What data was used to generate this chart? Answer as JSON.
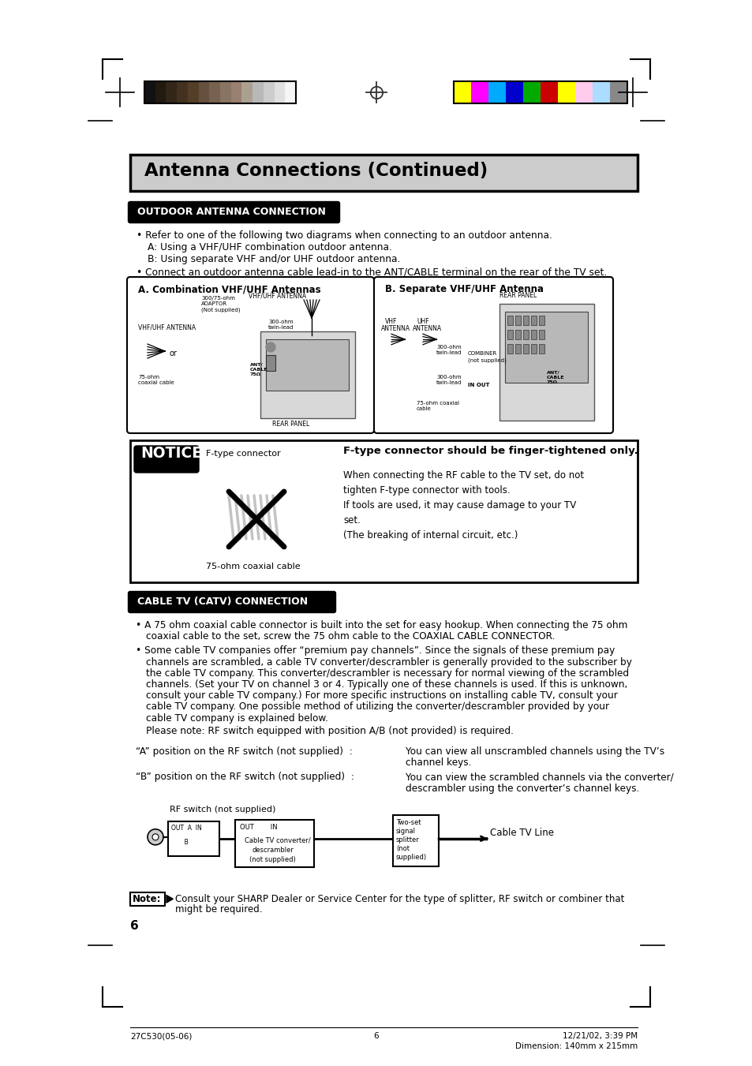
{
  "page_bg": "#ffffff",
  "title": "Antenna Connections (Continued)",
  "section1_label": "OUTDOOR ANTENNA CONNECTION",
  "section2_label": "CABLE TV (CATV) CONNECTION",
  "bullet1_line1": "Refer to one of the following two diagrams when connecting to an outdoor antenna.",
  "bullet1_line2": "A: Using a VHF/UHF combination outdoor antenna.",
  "bullet1_line3": "B: Using separate VHF and/or UHF outdoor antenna.",
  "bullet2": "Connect an outdoor antenna cable lead-in to the ANT/CABLE terminal on the rear of the TV set.",
  "diagram_a_title": "A. Combination VHF/UHF Antennas",
  "diagram_b_title": "B. Separate VHF/UHF Antenna",
  "notice_title": "F-type connector should be finger-tightened only.",
  "notice_para1": "When connecting the RF cable to the TV set, do not",
  "notice_para2": "tighten F-type connector with tools.",
  "notice_para3": "If tools are used, it may cause damage to your TV",
  "notice_para4": "set.",
  "notice_para5": "(The breaking of internal circuit, etc.)",
  "notice_ftype": "F-type connector",
  "notice_coax": "75-ohm coaxial cable",
  "catv_bullet1_1": "A 75 ohm coaxial cable connector is built into the set for easy hookup. When connecting the 75 ohm",
  "catv_bullet1_2": "coaxial cable to the set, screw the 75 ohm cable to the COAXIAL CABLE CONNECTOR.",
  "catv_bullet2_1": "Some cable TV companies offer “premium pay channels”. Since the signals of these premium pay",
  "catv_bullet2_2": "channels are scrambled, a cable TV converter/descrambler is generally provided to the subscriber by",
  "catv_bullet2_3": "the cable TV company. This converter/descrambler is necessary for normal viewing of the scrambled",
  "catv_bullet2_4": "channels. (Set your TV on channel 3 or 4. Typically one of these channels is used. If this is unknown,",
  "catv_bullet2_5": "consult your cable TV company.) For more specific instructions on installing cable TV, consult your",
  "catv_bullet2_6": "cable TV company. One possible method of utilizing the converter/descrambler provided by your",
  "catv_bullet2_7": "cable TV company is explained below.",
  "catv_note1": "Please note: RF switch equipped with position A/B (not provided) is required.",
  "catv_a_pos_label": "“A” position on the RF switch (not supplied)  :",
  "catv_a_pos_val1": "You can view all unscrambled channels using the TV’s",
  "catv_a_pos_val2": "channel keys.",
  "catv_b_pos_label": "“B” position on the RF switch (not supplied)  :",
  "catv_b_pos_val1": "You can view the scrambled channels via the converter/",
  "catv_b_pos_val2": "descrambler using the converter’s channel keys.",
  "rf_switch_label": "RF switch (not supplied)",
  "two_set_label": "Two-set\nsignal\nsplitter\n(not\nsupplied)",
  "cable_tv_line": "Cable TV Line",
  "cable_tv_conv": "Cable TV converter/",
  "cable_tv_desc": "descrambler",
  "cable_tv_not_sup": "(not supplied)",
  "note_text": "Consult your SHARP Dealer or Service Center for the type of splitter, RF switch or combiner that",
  "note_text2": "might be required.",
  "page_number": "6",
  "footer_left": "27C530(05-06)",
  "footer_center": "6",
  "footer_right": "12/21/02, 3:39 PM",
  "footer_dim": "Dimension: 140mm x 215mm",
  "color_bar_left": [
    "#111111",
    "#221a0f",
    "#332618",
    "#443220",
    "#553e28",
    "#665040",
    "#776250",
    "#887460",
    "#998070",
    "#aaa090",
    "#b8b8b8",
    "#cccccc",
    "#e0e0e0",
    "#f5f5f5"
  ],
  "color_bar_right": [
    "#ffff00",
    "#ff00ff",
    "#00aaff",
    "#0000cc",
    "#00aa00",
    "#cc0000",
    "#ffff00",
    "#ffccee",
    "#aaddff",
    "#888888"
  ]
}
